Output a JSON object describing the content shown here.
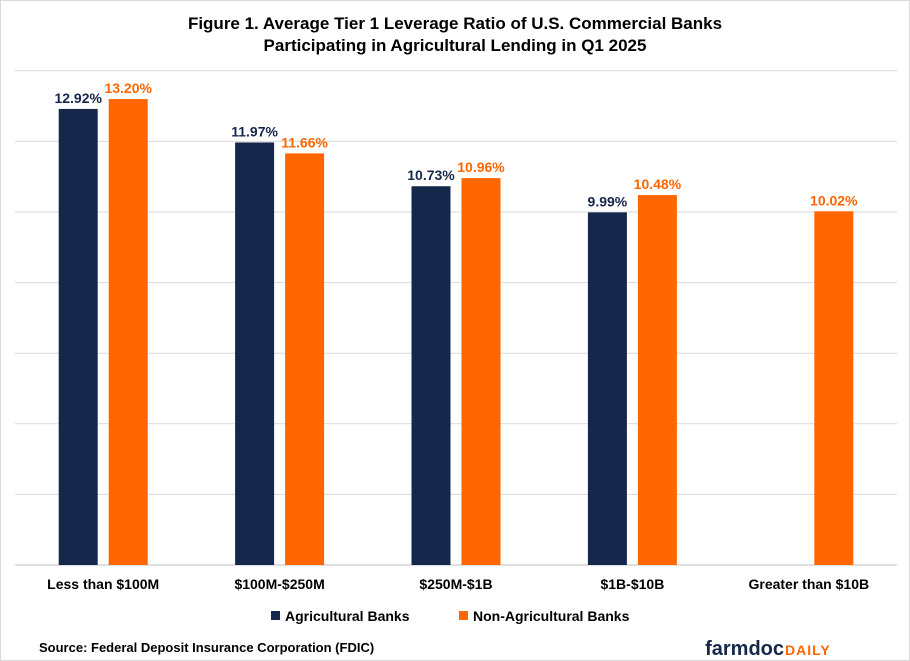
{
  "chart_data": {
    "type": "bar",
    "title": [
      "Figure 1. Average Tier 1 Leverage Ratio of U.S. Commercial Banks",
      "Participating in Agricultural Lending in Q1 2025"
    ],
    "categories": [
      "Less than $100M",
      "$100M-$250M",
      "$250M-$1B",
      "$1B-$10B",
      "Greater than $10B"
    ],
    "series": [
      {
        "name": "Agricultural Banks",
        "color": "#15284B",
        "values": [
          12.92,
          11.97,
          10.73,
          9.99,
          null
        ],
        "labels": [
          "12.92%",
          "11.97%",
          "10.73%",
          "9.99%",
          ""
        ]
      },
      {
        "name": "Non-Agricultural Banks",
        "color": "#FF6600",
        "values": [
          13.2,
          11.66,
          10.96,
          10.48,
          10.02
        ],
        "labels": [
          "13.20%",
          "11.66%",
          "10.96%",
          "10.48%",
          "10.02%"
        ]
      }
    ],
    "ylim": [
      0,
      14
    ],
    "ytick_step": 2,
    "grid": true,
    "legend": "bottom",
    "xlabel": "",
    "ylabel": ""
  },
  "source": "Source: Federal Deposit Insurance Corporation (FDIC)",
  "logo": {
    "part1": "farmdoc",
    "part2": "DAILY",
    "color1": "#15284B",
    "color2": "#FF6600"
  }
}
